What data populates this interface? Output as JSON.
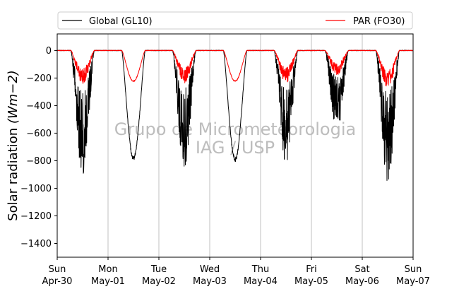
{
  "chart_data": {
    "type": "line",
    "title": "",
    "ylabel": "Solar radiation",
    "ylabel_unit": "(Wm−2)",
    "ylim": [
      -1500,
      120
    ],
    "yticks": [
      0,
      -200,
      -400,
      -600,
      -800,
      -1000,
      -1200,
      -1400
    ],
    "xlim_days": [
      0,
      7
    ],
    "x_ticks": [
      {
        "day": "Sun",
        "date": "Apr-30"
      },
      {
        "day": "Mon",
        "date": "May-01"
      },
      {
        "day": "Tue",
        "date": "May-02"
      },
      {
        "day": "Wed",
        "date": "May-03"
      },
      {
        "day": "Thu",
        "date": "May-04"
      },
      {
        "day": "Fri",
        "date": "May-05"
      },
      {
        "day": "Sat",
        "date": "May-06"
      },
      {
        "day": "Sun",
        "date": "May-07"
      }
    ],
    "grid": "vertical",
    "legend_position": "top",
    "watermark": [
      "Grupo de Micrometeorologia",
      "IAG / USP"
    ],
    "series": [
      {
        "name": "Global (GL10)",
        "color": "#000000",
        "daily_peak": [
          -830,
          -790,
          -780,
          -800,
          -760,
          -540,
          -890
        ],
        "cloudy": [
          true,
          false,
          true,
          false,
          true,
          true,
          true
        ]
      },
      {
        "name": "PAR (FO30)",
        "color": "#ff0000",
        "daily_peak": [
          -230,
          -225,
          -225,
          -225,
          -225,
          -170,
          -260
        ],
        "cloudy": [
          true,
          false,
          true,
          false,
          true,
          true,
          true
        ]
      }
    ]
  }
}
